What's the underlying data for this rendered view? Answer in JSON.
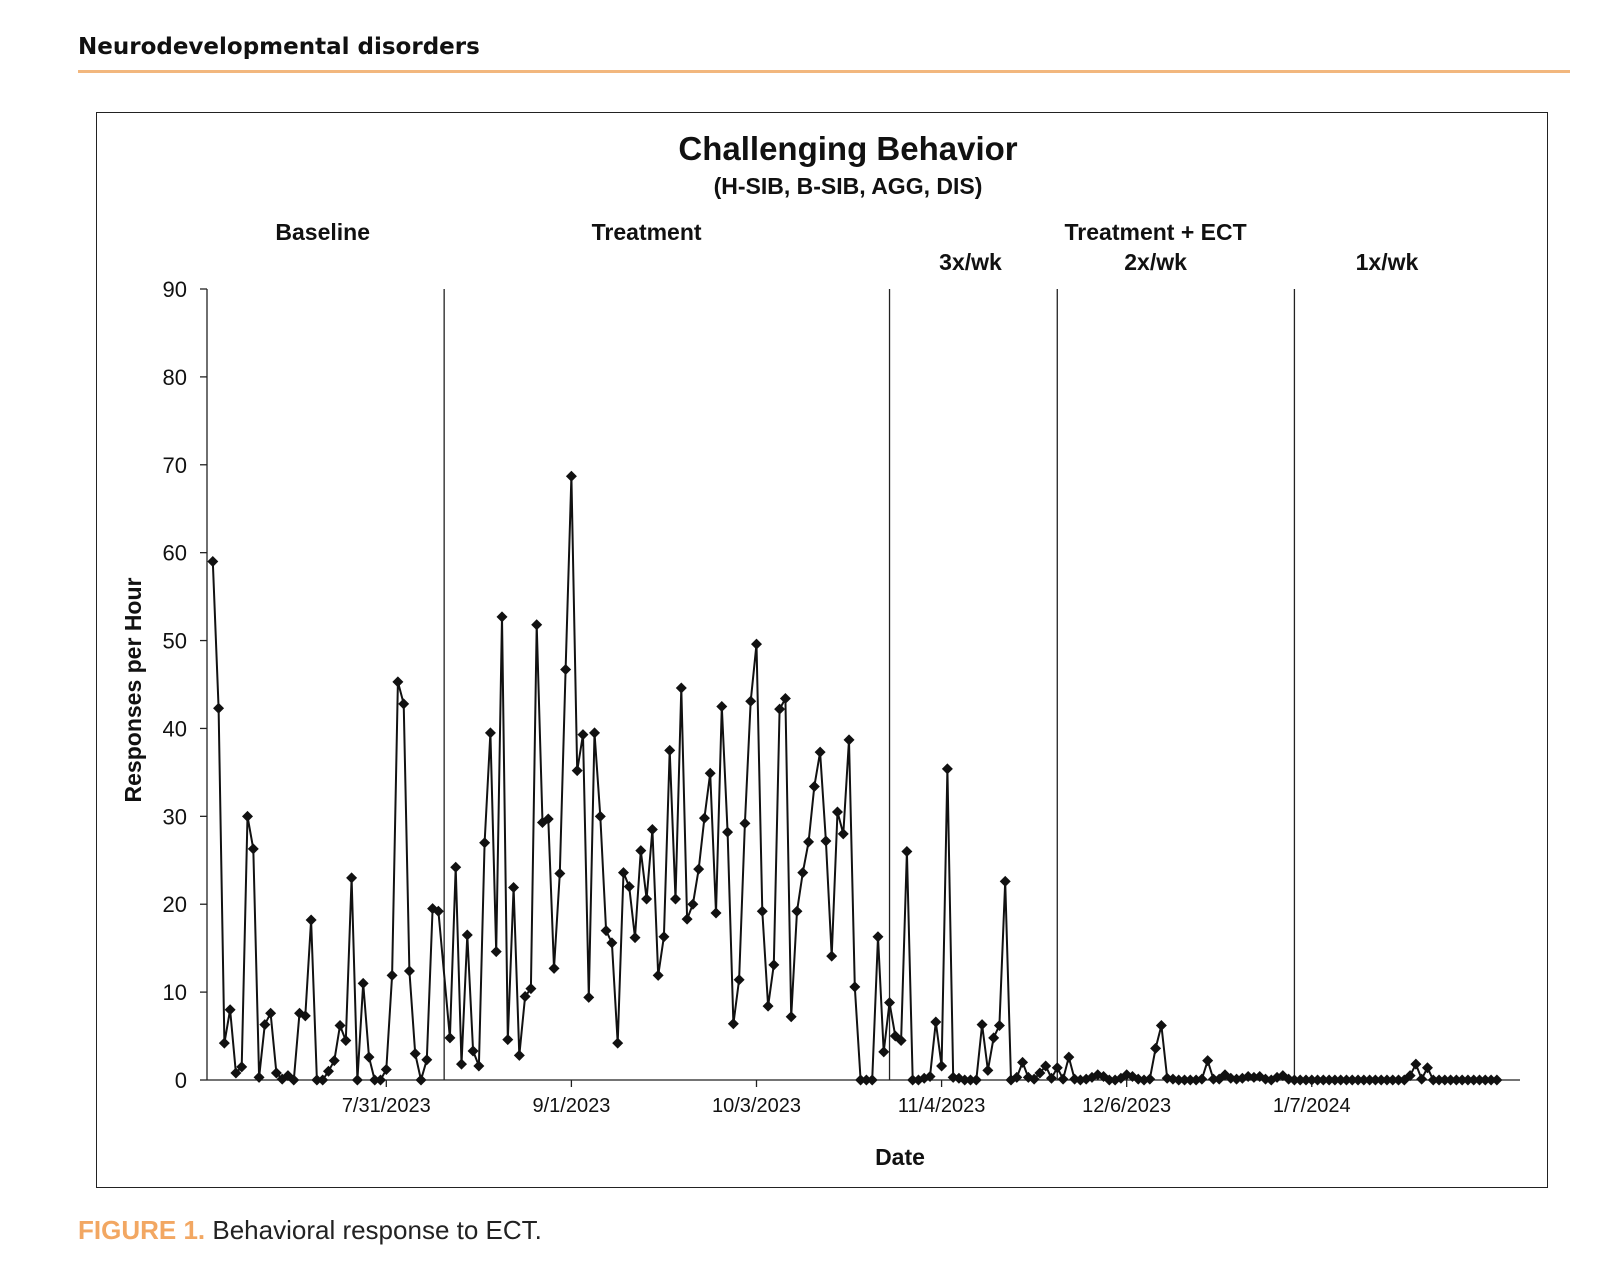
{
  "page": {
    "section_header": "Neurodevelopmental disorders",
    "accent_color": "#f2b77e",
    "caption_label": "FIGURE 1.",
    "caption_text": " Behavioral response to ECT."
  },
  "chart_data": {
    "type": "line",
    "title": "Challenging Behavior",
    "subtitle": "(H-SIB, B-SIB, AGG, DIS)",
    "xlabel": "Date",
    "ylabel": "Responses per Hour",
    "ylim": [
      0,
      90
    ],
    "yticks": [
      0,
      10,
      20,
      30,
      40,
      50,
      60,
      70,
      80,
      90
    ],
    "grid": false,
    "marker": "diamond",
    "line_color": "#111111",
    "x_start": "2023-06-30",
    "x_end": "2024-02-12",
    "xticks": [
      {
        "date": "2023-07-31",
        "label": "7/31/2023"
      },
      {
        "date": "2023-09-01",
        "label": "9/1/2023"
      },
      {
        "date": "2023-10-03",
        "label": "10/3/2023"
      },
      {
        "date": "2023-11-04",
        "label": "11/4/2023"
      },
      {
        "date": "2023-12-06",
        "label": "12/6/2023"
      },
      {
        "date": "2024-01-07",
        "label": "1/7/2024"
      }
    ],
    "phase_lines": [
      "2023-08-10",
      "2023-10-26",
      "2023-11-24",
      "2024-01-04"
    ],
    "phase_labels": [
      {
        "text": "Baseline",
        "date": "2023-07-20",
        "row": 1
      },
      {
        "text": "Treatment",
        "date": "2023-09-14",
        "row": 1
      },
      {
        "text": "Treatment + ECT",
        "date": "2023-12-11",
        "row": 1
      },
      {
        "text": "3x/wk",
        "date": "2023-11-09",
        "row": 2
      },
      {
        "text": "2x/wk",
        "date": "2023-12-11",
        "row": 2
      },
      {
        "text": "1x/wk",
        "date": "2024-01-20",
        "row": 2
      }
    ],
    "series": [
      {
        "points": [
          [
            "2023-07-01",
            59
          ],
          [
            "2023-07-02",
            42.3
          ],
          [
            "2023-07-03",
            4.2
          ],
          [
            "2023-07-04",
            8
          ],
          [
            "2023-07-05",
            0.8
          ],
          [
            "2023-07-06",
            1.5
          ],
          [
            "2023-07-07",
            30
          ],
          [
            "2023-07-08",
            26.3
          ],
          [
            "2023-07-09",
            0.3
          ],
          [
            "2023-07-10",
            6.3
          ],
          [
            "2023-07-11",
            7.6
          ],
          [
            "2023-07-12",
            0.8
          ],
          [
            "2023-07-13",
            0.1
          ],
          [
            "2023-07-14",
            0.5
          ],
          [
            "2023-07-15",
            0
          ],
          [
            "2023-07-16",
            7.6
          ],
          [
            "2023-07-17",
            7.3
          ],
          [
            "2023-07-18",
            18.2
          ],
          [
            "2023-07-19",
            0
          ],
          [
            "2023-07-20",
            0
          ],
          [
            "2023-07-21",
            1
          ],
          [
            "2023-07-22",
            2.2
          ],
          [
            "2023-07-23",
            6.2
          ],
          [
            "2023-07-24",
            4.5
          ],
          [
            "2023-07-25",
            23
          ],
          [
            "2023-07-26",
            0
          ],
          [
            "2023-07-27",
            11
          ],
          [
            "2023-07-28",
            2.6
          ],
          [
            "2023-07-29",
            0
          ],
          [
            "2023-07-30",
            0
          ],
          [
            "2023-07-31",
            1.2
          ],
          [
            "2023-08-01",
            11.9
          ],
          [
            "2023-08-02",
            45.3
          ],
          [
            "2023-08-03",
            42.8
          ],
          [
            "2023-08-04",
            12.4
          ],
          [
            "2023-08-05",
            3
          ],
          [
            "2023-08-06",
            0
          ],
          [
            "2023-08-07",
            2.3
          ],
          [
            "2023-08-08",
            19.5
          ],
          [
            "2023-08-09",
            19.2
          ],
          [
            "2023-08-11",
            4.8
          ],
          [
            "2023-08-12",
            24.2
          ],
          [
            "2023-08-13",
            1.8
          ],
          [
            "2023-08-14",
            16.5
          ],
          [
            "2023-08-15",
            3.3
          ],
          [
            "2023-08-16",
            1.6
          ],
          [
            "2023-08-17",
            27
          ],
          [
            "2023-08-18",
            39.5
          ],
          [
            "2023-08-19",
            14.6
          ],
          [
            "2023-08-20",
            52.7
          ],
          [
            "2023-08-21",
            4.6
          ],
          [
            "2023-08-22",
            21.9
          ],
          [
            "2023-08-23",
            2.8
          ],
          [
            "2023-08-24",
            9.5
          ],
          [
            "2023-08-25",
            10.4
          ],
          [
            "2023-08-26",
            51.8
          ],
          [
            "2023-08-27",
            29.3
          ],
          [
            "2023-08-28",
            29.7
          ],
          [
            "2023-08-29",
            12.7
          ],
          [
            "2023-08-30",
            23.5
          ],
          [
            "2023-08-31",
            46.7
          ],
          [
            "2023-09-01",
            68.7
          ],
          [
            "2023-09-02",
            35.2
          ],
          [
            "2023-09-03",
            39.3
          ],
          [
            "2023-09-04",
            9.4
          ],
          [
            "2023-09-05",
            39.5
          ],
          [
            "2023-09-06",
            30
          ],
          [
            "2023-09-07",
            17
          ],
          [
            "2023-09-08",
            15.6
          ],
          [
            "2023-09-09",
            4.2
          ],
          [
            "2023-09-10",
            23.6
          ],
          [
            "2023-09-11",
            22
          ],
          [
            "2023-09-12",
            16.2
          ],
          [
            "2023-09-13",
            26.1
          ],
          [
            "2023-09-14",
            20.6
          ],
          [
            "2023-09-15",
            28.5
          ],
          [
            "2023-09-16",
            11.9
          ],
          [
            "2023-09-17",
            16.3
          ],
          [
            "2023-09-18",
            37.5
          ],
          [
            "2023-09-19",
            20.6
          ],
          [
            "2023-09-20",
            44.6
          ],
          [
            "2023-09-21",
            18.3
          ],
          [
            "2023-09-22",
            20
          ],
          [
            "2023-09-23",
            24
          ],
          [
            "2023-09-24",
            29.8
          ],
          [
            "2023-09-25",
            34.9
          ],
          [
            "2023-09-26",
            19
          ],
          [
            "2023-09-27",
            42.5
          ],
          [
            "2023-09-28",
            28.2
          ],
          [
            "2023-09-29",
            6.4
          ],
          [
            "2023-09-30",
            11.4
          ],
          [
            "2023-10-01",
            29.2
          ],
          [
            "2023-10-02",
            43.1
          ],
          [
            "2023-10-03",
            49.6
          ],
          [
            "2023-10-04",
            19.2
          ],
          [
            "2023-10-05",
            8.4
          ],
          [
            "2023-10-06",
            13.1
          ],
          [
            "2023-10-07",
            42.2
          ],
          [
            "2023-10-08",
            43.4
          ],
          [
            "2023-10-09",
            7.2
          ],
          [
            "2023-10-10",
            19.2
          ],
          [
            "2023-10-11",
            23.6
          ],
          [
            "2023-10-12",
            27.1
          ],
          [
            "2023-10-13",
            33.4
          ],
          [
            "2023-10-14",
            37.3
          ],
          [
            "2023-10-15",
            27.2
          ],
          [
            "2023-10-16",
            14.1
          ],
          [
            "2023-10-17",
            30.5
          ],
          [
            "2023-10-18",
            28
          ],
          [
            "2023-10-19",
            38.7
          ],
          [
            "2023-10-20",
            10.6
          ],
          [
            "2023-10-21",
            0
          ],
          [
            "2023-10-22",
            0
          ],
          [
            "2023-10-23",
            0
          ],
          [
            "2023-10-24",
            16.3
          ],
          [
            "2023-10-25",
            3.2
          ],
          [
            "2023-10-26",
            8.8
          ],
          [
            "2023-10-27",
            5
          ],
          [
            "2023-10-28",
            4.5
          ],
          [
            "2023-10-29",
            26
          ],
          [
            "2023-10-30",
            0
          ],
          [
            "2023-10-31",
            0
          ],
          [
            "2023-11-01",
            0.2
          ],
          [
            "2023-11-02",
            0.4
          ],
          [
            "2023-11-03",
            6.6
          ],
          [
            "2023-11-04",
            1.6
          ],
          [
            "2023-11-05",
            35.4
          ],
          [
            "2023-11-06",
            0.3
          ],
          [
            "2023-11-07",
            0.2
          ],
          [
            "2023-11-08",
            0
          ],
          [
            "2023-11-09",
            0
          ],
          [
            "2023-11-10",
            0
          ],
          [
            "2023-11-11",
            6.3
          ],
          [
            "2023-11-12",
            1.1
          ],
          [
            "2023-11-13",
            4.8
          ],
          [
            "2023-11-14",
            6.2
          ],
          [
            "2023-11-15",
            22.6
          ],
          [
            "2023-11-16",
            0
          ],
          [
            "2023-11-17",
            0.3
          ],
          [
            "2023-11-18",
            2
          ],
          [
            "2023-11-19",
            0.3
          ],
          [
            "2023-11-20",
            0.1
          ],
          [
            "2023-11-21",
            0.8
          ],
          [
            "2023-11-22",
            1.6
          ],
          [
            "2023-11-23",
            0.2
          ],
          [
            "2023-11-24",
            1.4
          ],
          [
            "2023-11-25",
            0.1
          ],
          [
            "2023-11-26",
            2.6
          ],
          [
            "2023-11-27",
            0.1
          ],
          [
            "2023-11-28",
            0
          ],
          [
            "2023-11-29",
            0.1
          ],
          [
            "2023-11-30",
            0.3
          ],
          [
            "2023-12-01",
            0.6
          ],
          [
            "2023-12-02",
            0.4
          ],
          [
            "2023-12-03",
            0
          ],
          [
            "2023-12-04",
            0
          ],
          [
            "2023-12-05",
            0.2
          ],
          [
            "2023-12-06",
            0.6
          ],
          [
            "2023-12-07",
            0.4
          ],
          [
            "2023-12-08",
            0.1
          ],
          [
            "2023-12-09",
            0
          ],
          [
            "2023-12-10",
            0.1
          ],
          [
            "2023-12-11",
            3.6
          ],
          [
            "2023-12-12",
            6.2
          ],
          [
            "2023-12-13",
            0.2
          ],
          [
            "2023-12-14",
            0.1
          ],
          [
            "2023-12-15",
            0
          ],
          [
            "2023-12-16",
            0
          ],
          [
            "2023-12-17",
            0
          ],
          [
            "2023-12-18",
            0
          ],
          [
            "2023-12-19",
            0.1
          ],
          [
            "2023-12-20",
            2.2
          ],
          [
            "2023-12-21",
            0.1
          ],
          [
            "2023-12-22",
            0.1
          ],
          [
            "2023-12-23",
            0.6
          ],
          [
            "2023-12-24",
            0.2
          ],
          [
            "2023-12-25",
            0.1
          ],
          [
            "2023-12-26",
            0.2
          ],
          [
            "2023-12-27",
            0.4
          ],
          [
            "2023-12-28",
            0.3
          ],
          [
            "2023-12-29",
            0.4
          ],
          [
            "2023-12-30",
            0.1
          ],
          [
            "2023-12-31",
            0
          ],
          [
            "2024-01-01",
            0.3
          ],
          [
            "2024-01-02",
            0.5
          ],
          [
            "2024-01-03",
            0.1
          ],
          [
            "2024-01-04",
            0
          ],
          [
            "2024-01-05",
            0
          ],
          [
            "2024-01-06",
            0
          ],
          [
            "2024-01-07",
            0
          ],
          [
            "2024-01-08",
            0
          ],
          [
            "2024-01-09",
            0
          ],
          [
            "2024-01-10",
            0
          ],
          [
            "2024-01-11",
            0
          ],
          [
            "2024-01-12",
            0
          ],
          [
            "2024-01-13",
            0
          ],
          [
            "2024-01-14",
            0
          ],
          [
            "2024-01-15",
            0
          ],
          [
            "2024-01-16",
            0
          ],
          [
            "2024-01-17",
            0
          ],
          [
            "2024-01-18",
            0
          ],
          [
            "2024-01-19",
            0
          ],
          [
            "2024-01-20",
            0
          ],
          [
            "2024-01-21",
            0
          ],
          [
            "2024-01-22",
            0
          ],
          [
            "2024-01-23",
            0
          ],
          [
            "2024-01-24",
            0.5
          ],
          [
            "2024-01-25",
            1.8
          ],
          [
            "2024-01-26",
            0.1
          ],
          [
            "2024-01-27",
            1.4
          ],
          [
            "2024-01-28",
            0
          ],
          [
            "2024-01-29",
            0
          ],
          [
            "2024-01-30",
            0
          ],
          [
            "2024-01-31",
            0
          ],
          [
            "2024-02-01",
            0
          ],
          [
            "2024-02-02",
            0
          ],
          [
            "2024-02-03",
            0
          ],
          [
            "2024-02-04",
            0
          ],
          [
            "2024-02-05",
            0
          ],
          [
            "2024-02-06",
            0
          ],
          [
            "2024-02-07",
            0
          ],
          [
            "2024-02-08",
            0
          ]
        ]
      }
    ]
  }
}
